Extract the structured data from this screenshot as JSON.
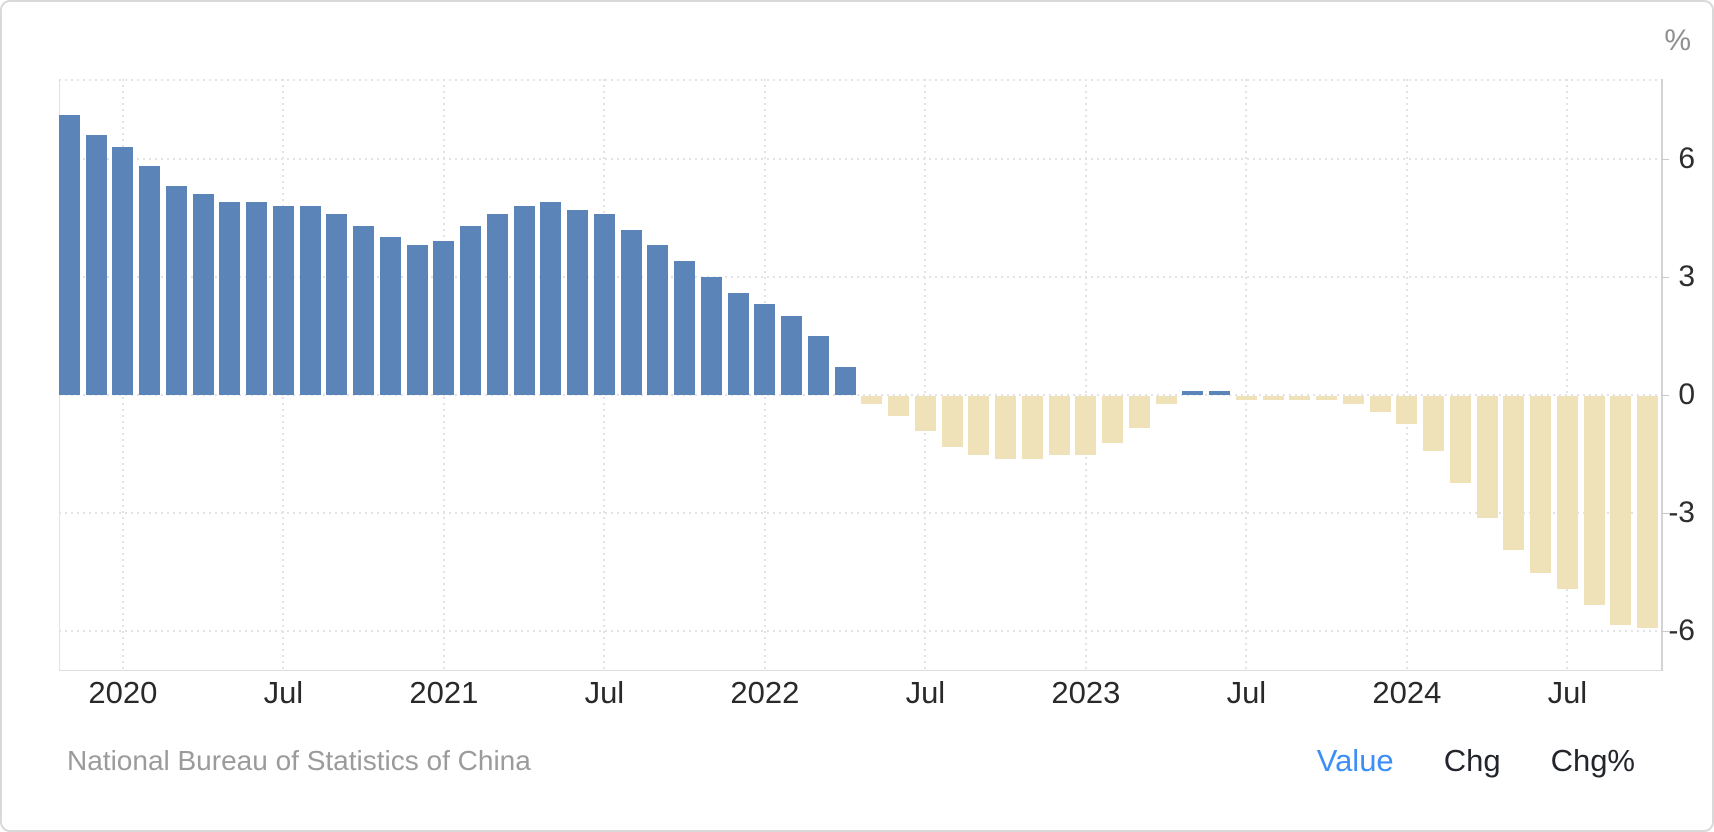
{
  "header": {
    "unit_label": "%"
  },
  "chart_data": {
    "type": "bar",
    "ylabel": "%",
    "ylim": [
      -7,
      8
    ],
    "grid": true,
    "legend_position": "bottom-right",
    "y_ticks": [
      6,
      3,
      0,
      -3,
      -6
    ],
    "x_ticks": [
      {
        "label": "2020",
        "month_index": 2
      },
      {
        "label": "Jul",
        "month_index": 8
      },
      {
        "label": "2021",
        "month_index": 14
      },
      {
        "label": "Jul",
        "month_index": 20
      },
      {
        "label": "2022",
        "month_index": 26
      },
      {
        "label": "Jul",
        "month_index": 32
      },
      {
        "label": "2023",
        "month_index": 38
      },
      {
        "label": "Jul",
        "month_index": 44
      },
      {
        "label": "2024",
        "month_index": 50
      },
      {
        "label": "Jul",
        "month_index": 56
      }
    ],
    "months": [
      "2019-11",
      "2019-12",
      "2020-01",
      "2020-02",
      "2020-03",
      "2020-04",
      "2020-05",
      "2020-06",
      "2020-07",
      "2020-08",
      "2020-09",
      "2020-10",
      "2020-11",
      "2020-12",
      "2021-01",
      "2021-02",
      "2021-03",
      "2021-04",
      "2021-05",
      "2021-06",
      "2021-07",
      "2021-08",
      "2021-09",
      "2021-10",
      "2021-11",
      "2021-12",
      "2022-01",
      "2022-02",
      "2022-03",
      "2022-04",
      "2022-05",
      "2022-06",
      "2022-07",
      "2022-08",
      "2022-09",
      "2022-10",
      "2022-11",
      "2022-12",
      "2023-01",
      "2023-02",
      "2023-03",
      "2023-04",
      "2023-05",
      "2023-06",
      "2023-07",
      "2023-08",
      "2023-09",
      "2023-10",
      "2023-11",
      "2023-12",
      "2024-01",
      "2024-02",
      "2024-03",
      "2024-04",
      "2024-05",
      "2024-06",
      "2024-07",
      "2024-08",
      "2024-09",
      "2024-10"
    ],
    "values": [
      7.1,
      6.6,
      6.3,
      5.8,
      5.3,
      5.1,
      4.9,
      4.9,
      4.8,
      4.8,
      4.6,
      4.3,
      4.0,
      3.8,
      3.9,
      4.3,
      4.6,
      4.8,
      4.9,
      4.7,
      4.6,
      4.2,
      3.8,
      3.4,
      3.0,
      2.6,
      2.3,
      2.0,
      1.5,
      0.7,
      -0.2,
      -0.5,
      -0.9,
      -1.3,
      -1.5,
      -1.6,
      -1.6,
      -1.5,
      -1.5,
      -1.2,
      -0.8,
      -0.2,
      0.1,
      0.1,
      -0.1,
      -0.1,
      -0.1,
      -0.1,
      -0.2,
      -0.4,
      -0.7,
      -1.4,
      -2.2,
      -3.1,
      -3.9,
      -4.5,
      -4.9,
      -5.3,
      -5.8,
      -5.9
    ],
    "positive_color": "#5b84b8",
    "negative_color": "#f0e2b8"
  },
  "footer": {
    "source": "National Bureau of Statistics of China",
    "legend": [
      {
        "label": "Value",
        "active": true
      },
      {
        "label": "Chg",
        "active": false
      },
      {
        "label": "Chg%",
        "active": false
      }
    ],
    "active_color": "#3e8ef7"
  }
}
